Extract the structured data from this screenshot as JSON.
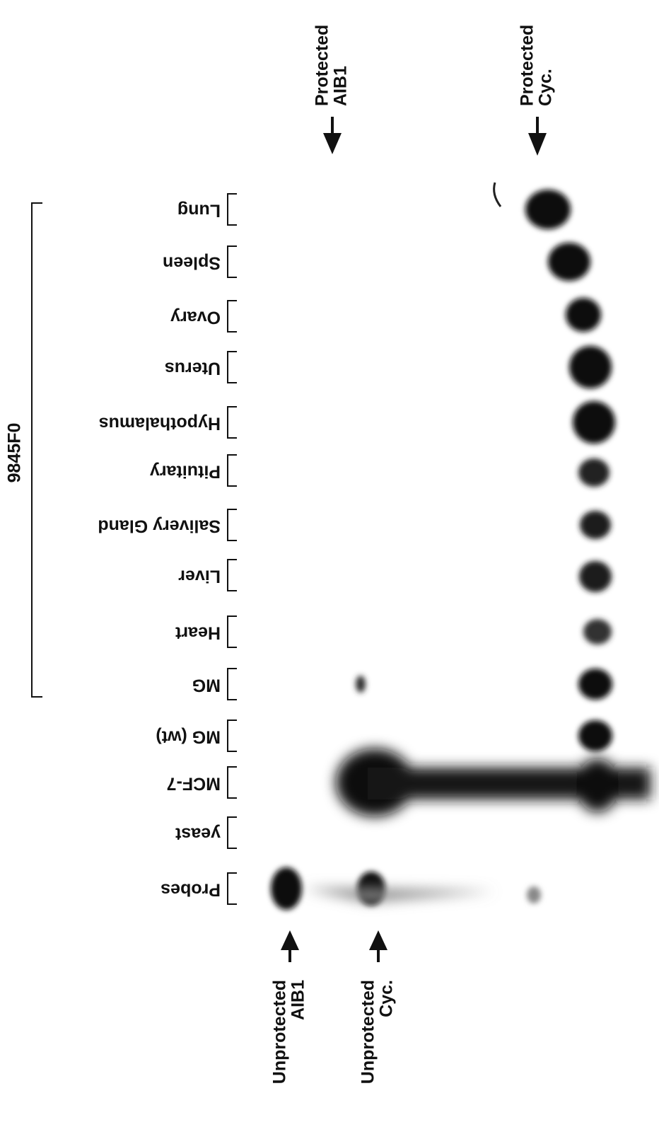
{
  "group_label": "9845F0",
  "lanes": [
    "Lung",
    "Spleen",
    "Ovary",
    "Uterus",
    "Hypothalamus",
    "Pituitary",
    "Salivery Gland",
    "Liver",
    "Heart",
    "MG",
    "MG (wt)",
    "MCF-7",
    "yeast",
    "Probes"
  ],
  "arrows": [
    {
      "lines": [
        "Protected",
        "AIB1"
      ]
    },
    {
      "lines": [
        "Protected",
        "Cyc."
      ]
    },
    {
      "lines": [
        "Unprotected",
        "AIB1"
      ]
    },
    {
      "lines": [
        "Unprotected",
        "Cyc."
      ]
    }
  ]
}
